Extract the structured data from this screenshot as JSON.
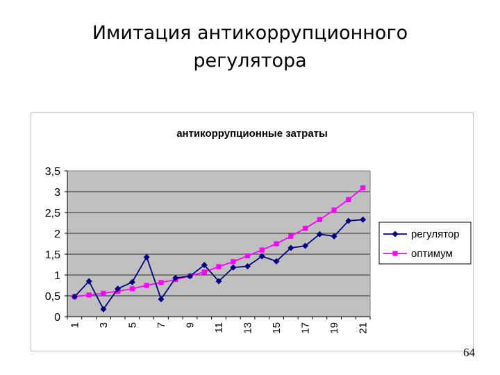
{
  "slide": {
    "title_line1": "Имитация антикоррупционного",
    "title_line2": "регулятора",
    "page_number": "64"
  },
  "chart_data": {
    "type": "line",
    "title": "антикоррупционные затраты",
    "xlabel": "",
    "ylabel": "",
    "x": [
      1,
      2,
      3,
      4,
      5,
      6,
      7,
      8,
      9,
      10,
      11,
      12,
      13,
      14,
      15,
      16,
      17,
      18,
      19,
      20,
      21
    ],
    "x_tick_labels": [
      "1",
      "3",
      "5",
      "7",
      "9",
      "11",
      "13",
      "15",
      "17",
      "19",
      "21"
    ],
    "y_tick_labels": [
      "0",
      "0,5",
      "1",
      "1,5",
      "2",
      "2,5",
      "3",
      "3,5"
    ],
    "ylim": [
      0,
      3.5
    ],
    "grid": true,
    "legend_position": "right",
    "plot_background": "#c0c0c0",
    "series": [
      {
        "name": "регулятор",
        "color": "#000080",
        "marker": "diamond",
        "values": [
          0.48,
          0.85,
          0.18,
          0.67,
          0.83,
          1.43,
          0.42,
          0.93,
          0.97,
          1.24,
          0.85,
          1.18,
          1.21,
          1.45,
          1.33,
          1.65,
          1.7,
          1.98,
          1.93,
          2.3,
          2.33
        ]
      },
      {
        "name": "оптимум",
        "color": "#ff00ff",
        "marker": "square",
        "values": [
          0.48,
          0.52,
          0.56,
          0.61,
          0.67,
          0.75,
          0.82,
          0.89,
          0.98,
          1.07,
          1.2,
          1.32,
          1.46,
          1.6,
          1.75,
          1.93,
          2.12,
          2.33,
          2.56,
          2.81,
          3.09
        ]
      }
    ]
  }
}
